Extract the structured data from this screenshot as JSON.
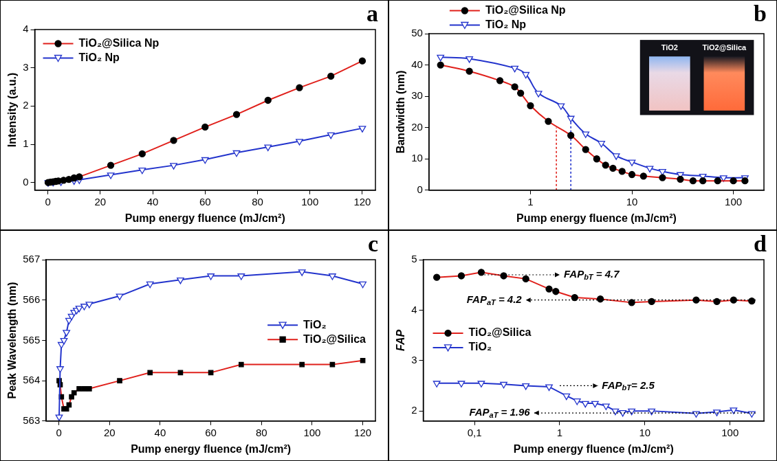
{
  "chart_data": [
    {
      "panel": "a",
      "type": "line",
      "x_label": "Pump energy fluence (mJ/cm²)",
      "y_label": "Intensity (a.u.)",
      "xlim": [
        -5,
        125
      ],
      "xticks": [
        0,
        20,
        40,
        60,
        80,
        100,
        120
      ],
      "ylim": [
        -0.2,
        4
      ],
      "yticks": [
        0,
        1,
        2,
        3,
        4
      ],
      "grid": false,
      "legend": "upper left",
      "series": [
        {
          "name": "TiO₂@Silica Np",
          "color": "#e0201b",
          "marker": "circle",
          "line_style": "solid",
          "x": [
            0.1,
            1,
            2,
            3,
            4,
            6,
            8,
            10,
            12,
            24,
            36,
            48,
            60,
            72,
            84,
            96,
            108,
            120
          ],
          "values": [
            0,
            0.01,
            0.02,
            0.03,
            0.04,
            0.06,
            0.08,
            0.12,
            0.15,
            0.45,
            0.75,
            1.1,
            1.45,
            1.78,
            2.15,
            2.48,
            2.78,
            3.18
          ]
        },
        {
          "name": "TiO₂ Np",
          "color": "#2233cc",
          "marker": "triangle_down",
          "line_style": "solid",
          "x": [
            0.1,
            2,
            5,
            10,
            12,
            24,
            36,
            48,
            60,
            72,
            84,
            96,
            108,
            120
          ],
          "values": [
            0,
            0.01,
            0.02,
            0.05,
            0.07,
            0.2,
            0.33,
            0.45,
            0.6,
            0.78,
            0.93,
            1.08,
            1.25,
            1.42
          ]
        }
      ]
    },
    {
      "panel": "b",
      "type": "line",
      "x_label": "Pump energy fluence (mJ/cm²)",
      "y_label": "Bandwidth (nm)",
      "log": "x",
      "xlim": [
        0.1,
        200
      ],
      "xticks": [
        1,
        10,
        100
      ],
      "ylim": [
        0,
        50
      ],
      "yticks": [
        0,
        10,
        20,
        30,
        40,
        50
      ],
      "grid": false,
      "legend": "top",
      "inset_labels": [
        "TiO2",
        "TiO2@Silica"
      ],
      "threshold_lines": [
        {
          "x": 1.8,
          "y": 20,
          "color": "#e0201b",
          "line_style": "dotted"
        },
        {
          "x": 2.5,
          "y": 23,
          "color": "#2233cc",
          "line_style": "dotted"
        }
      ],
      "series": [
        {
          "name": "TiO₂@Silica Np",
          "color": "#e0201b",
          "marker": "circle",
          "line_style": "smooth",
          "x": [
            0.13,
            0.25,
            0.5,
            0.7,
            0.8,
            1.0,
            1.5,
            2.5,
            3.5,
            4.5,
            5.5,
            6.5,
            8,
            10,
            13,
            20,
            30,
            40,
            50,
            70,
            100,
            130
          ],
          "values": [
            40,
            38,
            35,
            33,
            31,
            27,
            22,
            17.5,
            13,
            10,
            8,
            7,
            6,
            5,
            4.5,
            4,
            3.5,
            3,
            3,
            3,
            3,
            3
          ]
        },
        {
          "name": "TiO₂ Np",
          "color": "#2233cc",
          "marker": "triangle_down",
          "line_style": "smooth",
          "x": [
            0.13,
            0.25,
            0.7,
            0.9,
            1.2,
            2,
            2.5,
            3.5,
            5,
            7,
            10,
            15,
            20,
            30,
            50,
            80,
            130
          ],
          "values": [
            42.5,
            42,
            39,
            37,
            31,
            27,
            23,
            18,
            15,
            11,
            9,
            7,
            6,
            5,
            4.5,
            4,
            4
          ]
        }
      ]
    },
    {
      "panel": "c",
      "type": "line",
      "x_label": "Pump energy fluence (mJ/cm²)",
      "y_label": "Peak Wavelength (nm)",
      "xlim": [
        -5,
        125
      ],
      "xticks": [
        0,
        20,
        40,
        60,
        80,
        100,
        120
      ],
      "ylim": [
        563,
        567
      ],
      "yticks": [
        563,
        564,
        565,
        566,
        567
      ],
      "grid": false,
      "legend": "center right",
      "series": [
        {
          "name": "TiO₂",
          "color": "#2233cc",
          "marker": "triangle_down",
          "line_style": "solid",
          "x": [
            0.1,
            0.5,
            1,
            2,
            3,
            4,
            5,
            6,
            7,
            8,
            10,
            12,
            24,
            36,
            48,
            60,
            72,
            96,
            108,
            120
          ],
          "values": [
            563.1,
            564.3,
            564.9,
            565.0,
            565.2,
            565.5,
            565.6,
            565.7,
            565.75,
            565.8,
            565.85,
            565.9,
            566.1,
            566.4,
            566.5,
            566.6,
            566.6,
            566.7,
            566.6,
            566.4
          ]
        },
        {
          "name": "TiO₂@Silica",
          "color": "#e0201b",
          "marker": "square",
          "line_style": "solid",
          "x": [
            0.1,
            0.5,
            1,
            2,
            3,
            4,
            5,
            6,
            8,
            10,
            12,
            24,
            36,
            48,
            60,
            72,
            96,
            108,
            120
          ],
          "values": [
            564.0,
            563.9,
            563.6,
            563.3,
            563.3,
            563.4,
            563.6,
            563.7,
            563.8,
            563.8,
            563.8,
            564.0,
            564.2,
            564.2,
            564.2,
            564.4,
            564.4,
            564.4,
            564.5
          ]
        }
      ]
    },
    {
      "panel": "d",
      "type": "line",
      "x_label": "Pump energy fluence (mJ/cm²)",
      "y_label": "FAP",
      "log": "x",
      "xlim": [
        0.025,
        250
      ],
      "xticks": [
        {
          "value": 0.1,
          "label": "0,1"
        },
        1,
        10,
        100
      ],
      "ylim": [
        1.8,
        5
      ],
      "yticks": [
        2,
        3,
        4,
        5
      ],
      "grid": false,
      "legend": "center left",
      "annotations": [
        {
          "parts": [
            {
              "text": "FAP"
            },
            {
              "text": "bT",
              "sub": true
            },
            {
              "text": " = 4.7"
            }
          ],
          "y": 4.7,
          "arrow": [
            0.13,
            1.0
          ]
        },
        {
          "parts": [
            {
              "text": "FAP"
            },
            {
              "text": "aT",
              "sub": true
            },
            {
              "text": " = 4.2"
            }
          ],
          "y": 4.2,
          "arrow": [
            200,
            0.4
          ]
        },
        {
          "parts": [
            {
              "text": "FAP"
            },
            {
              "text": "bT",
              "sub": true
            },
            {
              "text": "= 2.5"
            }
          ],
          "y": 2.5,
          "arrow": [
            1.0,
            2.8
          ]
        },
        {
          "parts": [
            {
              "text": "FAP"
            },
            {
              "text": "aT",
              "sub": true
            },
            {
              "text": " = 1.96"
            }
          ],
          "y": 1.96,
          "arrow": [
            200,
            0.5
          ]
        }
      ],
      "series": [
        {
          "name": "TiO₂@Silica",
          "color": "#e0201b",
          "marker": "circle",
          "line_style": "solid",
          "x": [
            0.036,
            0.07,
            0.12,
            0.22,
            0.4,
            0.75,
            0.9,
            1.5,
            3,
            7,
            12,
            40,
            70,
            110,
            180
          ],
          "values": [
            4.65,
            4.68,
            4.75,
            4.68,
            4.62,
            4.42,
            4.37,
            4.25,
            4.22,
            4.15,
            4.17,
            4.2,
            4.17,
            4.2,
            4.18
          ]
        },
        {
          "name": "TiO₂",
          "color": "#2233cc",
          "marker": "triangle_down",
          "line_style": "solid",
          "x": [
            0.036,
            0.07,
            0.12,
            0.22,
            0.4,
            0.75,
            1.2,
            1.6,
            2,
            2.6,
            3.5,
            4.5,
            5.5,
            7,
            12,
            40,
            70,
            110,
            180
          ],
          "values": [
            2.55,
            2.55,
            2.55,
            2.53,
            2.5,
            2.48,
            2.3,
            2.2,
            2.15,
            2.15,
            2.1,
            2.0,
            1.97,
            2.0,
            2.0,
            1.95,
            1.98,
            2.02,
            1.95
          ]
        }
      ]
    }
  ]
}
